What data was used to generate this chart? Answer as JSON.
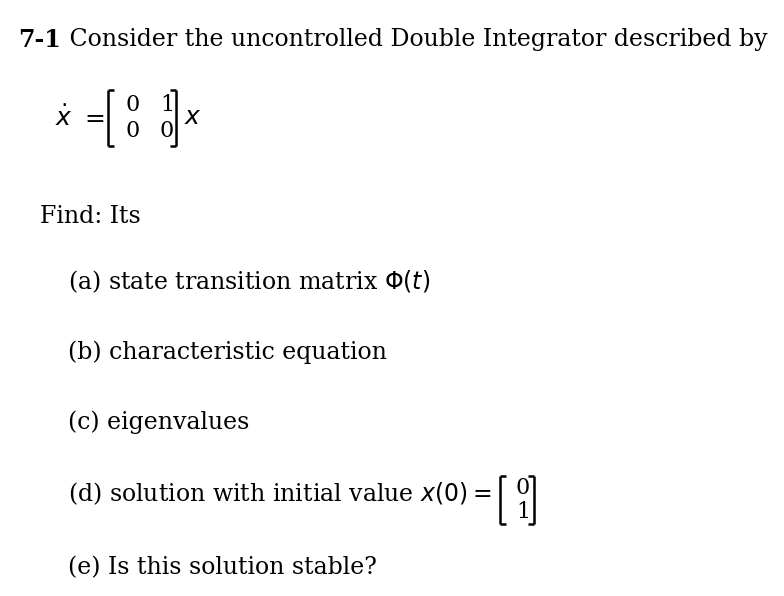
{
  "background_color": "#ffffff",
  "title_bold": "7-1",
  "title_normal": " Consider the uncontrolled Double Integrator described by",
  "title_fontsize": 17,
  "body_fontsize": 17,
  "items_a": "(a) state transition matrix $\\Phi(t)$",
  "items_b": "(b) characteristic equation",
  "items_c": "(c) eigenvalues",
  "items_d_text": "(d) solution with initial value $x(0) =$",
  "items_e": "(e) Is this solution stable?",
  "find_text": "Find: Its",
  "text_color": "#000000",
  "mat_top_row": "0    1",
  "mat_bot_row": "0    0",
  "vec_top": "0",
  "vec_bot": "1"
}
